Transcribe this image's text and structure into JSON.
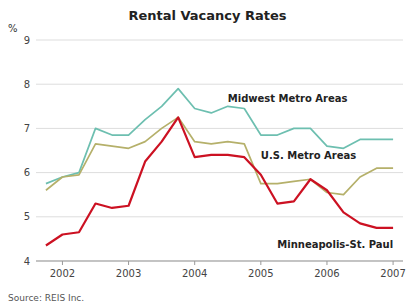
{
  "chart_data": {
    "type": "line",
    "title": "Rental Vacancy Rates",
    "ylabel": "%",
    "annotations": [
      "Source: REIS Inc."
    ],
    "x": [
      2001.75,
      2002.0,
      2002.25,
      2002.5,
      2002.75,
      2003.0,
      2003.25,
      2003.5,
      2003.75,
      2004.0,
      2004.25,
      2004.5,
      2004.75,
      2005.0,
      2005.25,
      2005.5,
      2005.75,
      2006.0,
      2006.25,
      2006.5,
      2006.75,
      2007.0
    ],
    "series": [
      {
        "name": "Midwest Metro Areas",
        "color": "#6dbfb0",
        "values": [
          5.75,
          5.9,
          6.0,
          7.0,
          6.85,
          6.85,
          7.2,
          7.5,
          7.9,
          7.45,
          7.35,
          7.5,
          7.45,
          6.85,
          6.85,
          7.0,
          7.0,
          6.6,
          6.55,
          6.75,
          6.75,
          6.75
        ]
      },
      {
        "name": "U.S. Metro Areas",
        "color": "#b5b06a",
        "values": [
          5.6,
          5.9,
          5.95,
          6.65,
          6.6,
          6.55,
          6.7,
          7.0,
          7.25,
          6.7,
          6.65,
          6.7,
          6.65,
          5.75,
          5.75,
          5.8,
          5.85,
          5.55,
          5.5,
          5.9,
          6.1,
          6.1
        ]
      },
      {
        "name": "Minneapolis-St. Paul",
        "color": "#cc1122",
        "values": [
          4.35,
          4.6,
          4.65,
          5.3,
          5.2,
          5.25,
          6.25,
          6.7,
          7.25,
          6.35,
          6.4,
          6.4,
          6.35,
          5.95,
          5.3,
          5.35,
          5.85,
          5.6,
          5.1,
          4.85,
          4.75,
          4.75
        ]
      }
    ],
    "xlim": [
      2001.6,
      2007.15
    ],
    "xticks": [
      2002,
      2003,
      2004,
      2005,
      2006,
      2007
    ],
    "ylim": [
      4,
      9
    ],
    "yticks": [
      4,
      5,
      6,
      7,
      8,
      9
    ],
    "grid": true
  }
}
